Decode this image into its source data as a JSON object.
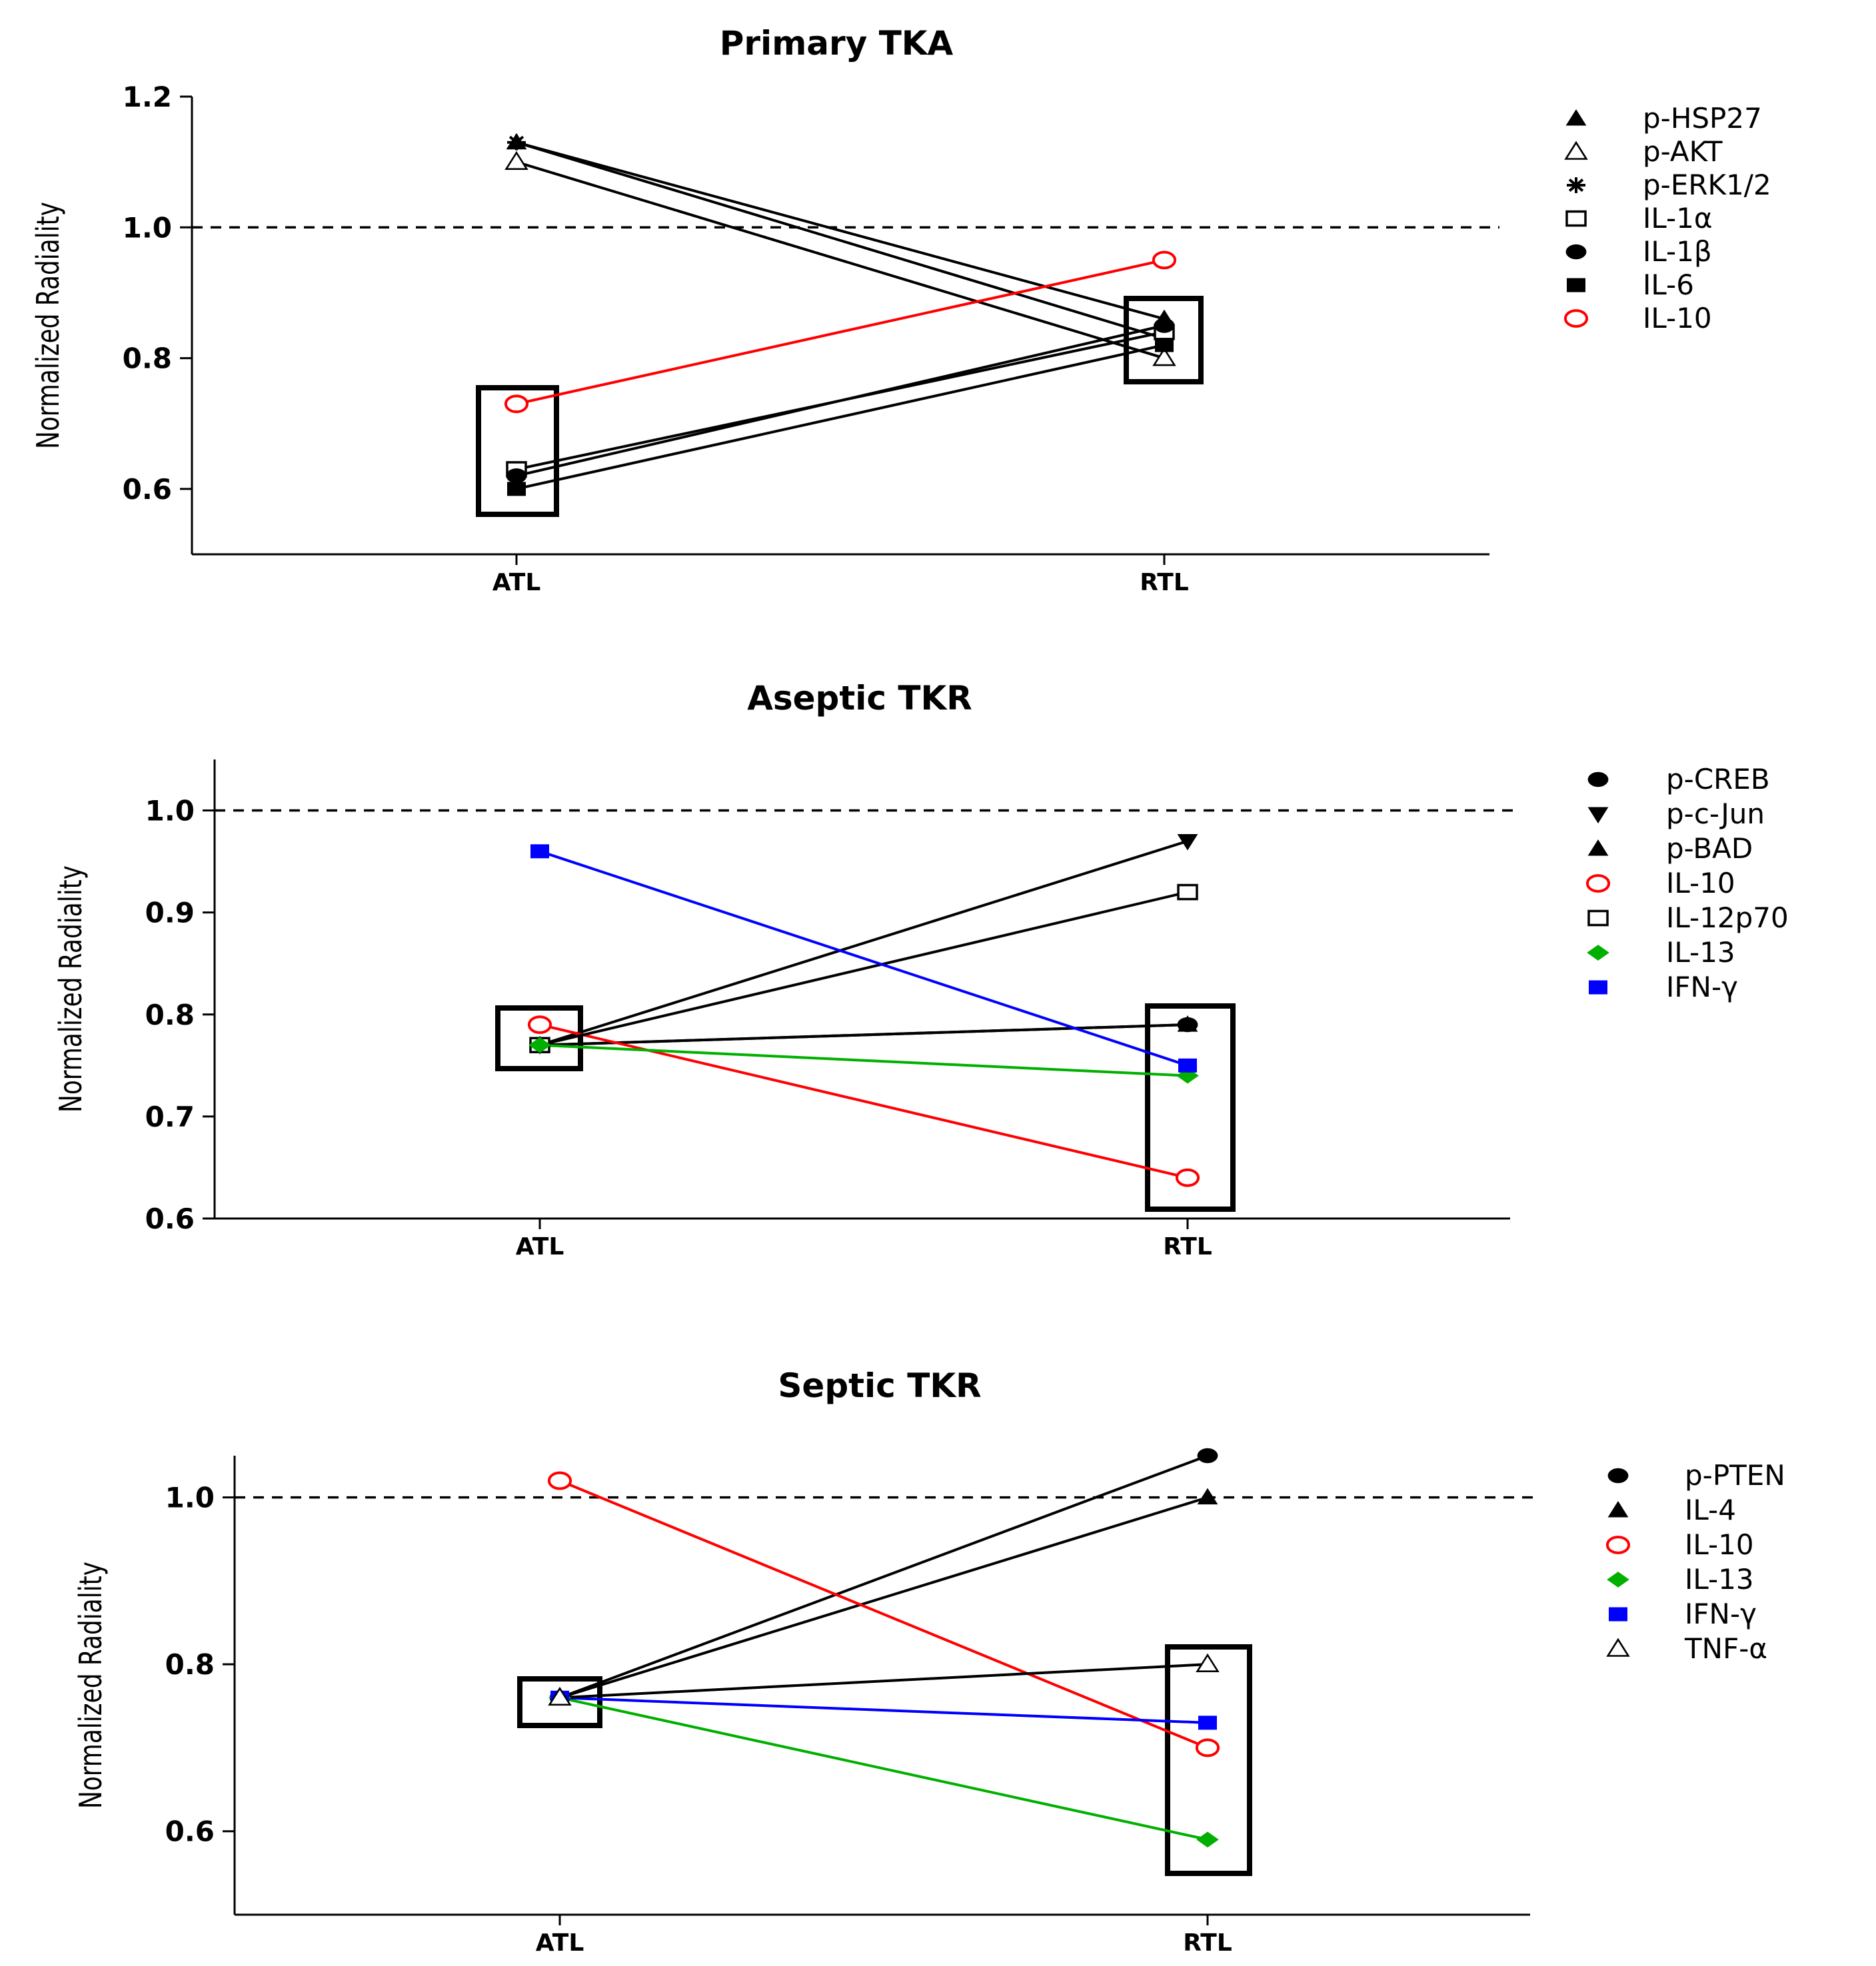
{
  "chart_data": [
    {
      "type": "line",
      "title": "Primary TKA",
      "ylabel": "Normalized Radiality",
      "categories": [
        "ATL",
        "RTL"
      ],
      "ylim": [
        0.5,
        1.2
      ],
      "yticks": [
        "0.6",
        "0.8",
        "1.0",
        "1.2"
      ],
      "reference_line": 1.0,
      "legend_position": "right",
      "series": [
        {
          "name": "p-HSP27",
          "marker": "triangle-filled",
          "color": "#000000",
          "values": [
            1.13,
            0.86
          ]
        },
        {
          "name": "p-AKT",
          "marker": "triangle-open",
          "color": "#000000",
          "values": [
            1.1,
            0.8
          ]
        },
        {
          "name": "p-ERK1/2",
          "marker": "asterisk",
          "color": "#000000",
          "values": [
            1.13,
            0.83
          ]
        },
        {
          "name": "IL-1α",
          "marker": "square-open",
          "color": "#000000",
          "values": [
            0.63,
            0.84
          ]
        },
        {
          "name": "IL-1β",
          "marker": "circle-filled",
          "color": "#000000",
          "values": [
            0.62,
            0.85
          ]
        },
        {
          "name": "IL-6",
          "marker": "square-filled",
          "color": "#000000",
          "values": [
            0.6,
            0.82
          ]
        },
        {
          "name": "IL-10",
          "marker": "circle-open",
          "color": "#ff0000",
          "values": [
            0.73,
            0.95
          ]
        }
      ]
    },
    {
      "type": "line",
      "title": "Aseptic TKR",
      "ylabel": "Normalized Radiality",
      "categories": [
        "ATL",
        "RTL"
      ],
      "ylim": [
        0.6,
        1.05
      ],
      "yticks": [
        "0.6",
        "0.7",
        "0.8",
        "0.9",
        "1.0"
      ],
      "reference_line": 1.0,
      "legend_position": "right",
      "series": [
        {
          "name": "p-CREB",
          "marker": "circle-filled",
          "color": "#000000",
          "values": [
            0.77,
            0.79
          ]
        },
        {
          "name": "p-c-Jun",
          "marker": "triangle-down-filled",
          "color": "#000000",
          "values": [
            0.77,
            0.97
          ]
        },
        {
          "name": "p-BAD",
          "marker": "triangle-filled",
          "color": "#000000",
          "values": [
            0.77,
            0.79
          ]
        },
        {
          "name": "IL-10",
          "marker": "circle-open",
          "color": "#ff0000",
          "values": [
            0.79,
            0.64
          ]
        },
        {
          "name": "IL-12p70",
          "marker": "square-open",
          "color": "#000000",
          "values": [
            0.77,
            0.92
          ]
        },
        {
          "name": "IL-13",
          "marker": "diamond-filled",
          "color": "#00b000",
          "values": [
            0.77,
            0.74
          ]
        },
        {
          "name": "IFN-γ",
          "marker": "square-filled",
          "color": "#0000ff",
          "values": [
            0.96,
            0.75
          ]
        }
      ]
    },
    {
      "type": "line",
      "title": "Septic TKR",
      "ylabel": "Normalized Radiality",
      "categories": [
        "ATL",
        "RTL"
      ],
      "ylim": [
        0.5,
        1.05
      ],
      "yticks": [
        "0.6",
        "0.8",
        "1.0"
      ],
      "reference_line": 1.0,
      "legend_position": "right",
      "series": [
        {
          "name": "p-PTEN",
          "marker": "circle-filled",
          "color": "#000000",
          "values": [
            0.76,
            1.05
          ]
        },
        {
          "name": "IL-4",
          "marker": "triangle-filled",
          "color": "#000000",
          "values": [
            0.76,
            1.0
          ]
        },
        {
          "name": "IL-10",
          "marker": "circle-open",
          "color": "#ff0000",
          "values": [
            1.02,
            0.7
          ]
        },
        {
          "name": "IL-13",
          "marker": "diamond-filled",
          "color": "#00b000",
          "values": [
            0.76,
            0.59
          ]
        },
        {
          "name": "IFN-γ",
          "marker": "square-filled",
          "color": "#0000ff",
          "values": [
            0.76,
            0.73
          ]
        },
        {
          "name": "TNF-α",
          "marker": "triangle-open",
          "color": "#000000",
          "values": [
            0.76,
            0.8
          ]
        }
      ]
    }
  ]
}
